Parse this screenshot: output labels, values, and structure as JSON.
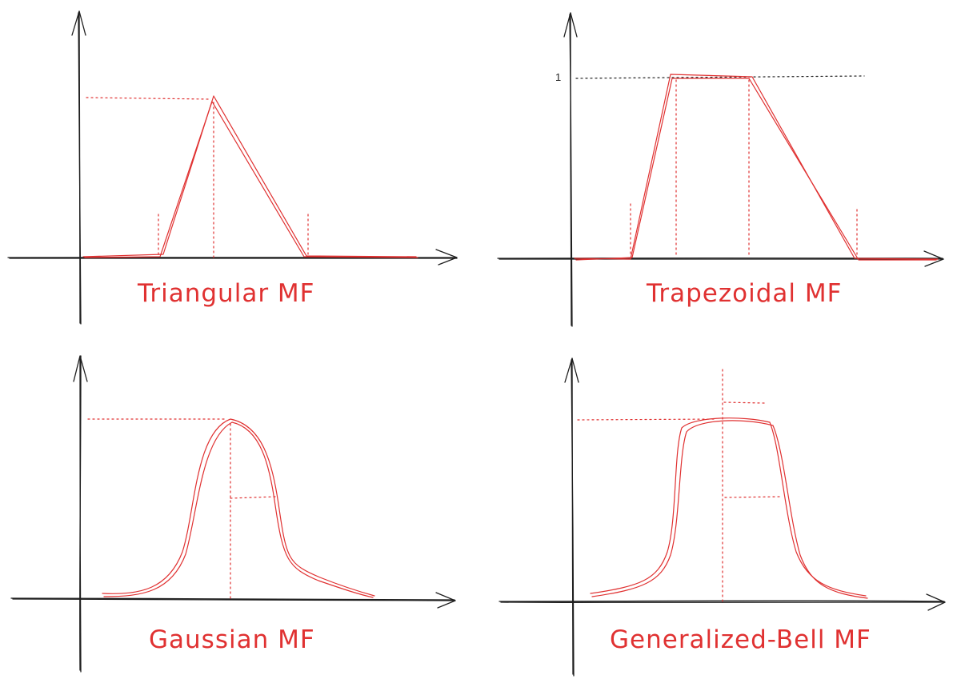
{
  "panels": [
    {
      "title": "Triangular MF"
    },
    {
      "title": "Trapezoidal MF",
      "y_tick": "1"
    },
    {
      "title": "Gaussian MF"
    },
    {
      "title": "Generalized-Bell MF"
    }
  ],
  "colors": {
    "curve": "#e03131",
    "axis": "#1e1e1e",
    "background": "#ffffff"
  }
}
